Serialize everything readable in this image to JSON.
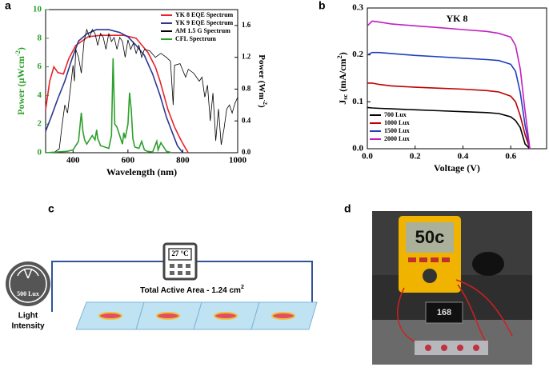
{
  "chart_data": [
    {
      "type": "line",
      "panel_label": "a",
      "x_label": "Wavelength (nm)",
      "y_label": {
        "text": "Power (µWcm",
        "sup": "-2",
        "end": ")"
      },
      "y2_label": {
        "text": "Power (Wm",
        "sup": "-2",
        "end": ")"
      },
      "y_color": "#2ca02c",
      "xlim": [
        300,
        1000
      ],
      "xticks": [
        400,
        600,
        800,
        1000
      ],
      "ylim": [
        0,
        10
      ],
      "yticks": [
        0,
        2,
        4,
        6,
        8,
        10
      ],
      "y2lim": [
        0,
        1.8
      ],
      "y2ticks": [
        {
          "value": 0,
          "label": "0.0"
        },
        0.4,
        0.8,
        1.2,
        1.6
      ],
      "legend": "upper right",
      "series": [
        {
          "name": "YK 8 EQE Spectrum",
          "color": "#e8232a",
          "x": [
            300,
            315,
            330,
            345,
            365,
            385,
            410,
            455,
            500,
            550,
            585,
            630,
            673,
            700,
            717,
            746,
            770,
            790,
            810,
            820
          ],
          "values": [
            3.0,
            5.0,
            6.0,
            5.6,
            5.5,
            6.6,
            7.5,
            8.1,
            8.2,
            8.2,
            8.2,
            8.0,
            7.0,
            6.0,
            5.0,
            3.0,
            1.8,
            1.0,
            0.3,
            0
          ]
        },
        {
          "name": "YK 9 EQE Spectrum",
          "color": "#2b3990",
          "x": [
            300,
            320,
            345,
            370,
            395,
            420,
            450,
            485,
            530,
            570,
            600,
            630,
            660,
            690,
            717,
            740,
            760,
            780,
            800
          ],
          "values": [
            1.5,
            2.5,
            3.8,
            5.0,
            6.5,
            7.8,
            8.3,
            8.6,
            8.6,
            8.4,
            8.1,
            7.5,
            6.8,
            5.5,
            4.0,
            2.5,
            1.5,
            0.5,
            0
          ]
        },
        {
          "name": "AM 1.5 G Spectrum",
          "color": "#000000",
          "axis": "y2",
          "x": [
            300,
            330,
            350,
            360,
            370,
            380,
            390,
            400,
            405,
            410,
            420,
            430,
            440,
            450,
            460,
            470,
            480,
            490,
            500,
            510,
            520,
            530,
            540,
            550,
            560,
            570,
            580,
            590,
            600,
            610,
            620,
            630,
            640,
            650,
            660,
            680,
            700,
            720,
            740,
            755,
            765,
            770,
            790,
            810,
            820,
            840,
            860,
            870,
            880,
            890,
            900,
            910,
            920,
            930,
            940,
            950,
            960,
            970,
            980,
            990,
            1000
          ],
          "values": [
            0,
            0,
            0.05,
            0.35,
            0.6,
            0.5,
            0.8,
            1.1,
            0.9,
            1.3,
            1.2,
            1.0,
            1.4,
            1.55,
            1.45,
            1.55,
            1.5,
            1.35,
            1.5,
            1.45,
            1.3,
            1.5,
            1.4,
            1.45,
            1.3,
            1.45,
            1.4,
            1.2,
            1.42,
            1.3,
            1.38,
            1.25,
            1.35,
            1.2,
            1.3,
            1.28,
            1.2,
            1.25,
            1.2,
            1.15,
            0.6,
            1.1,
            1.12,
            0.95,
            1.05,
            1.0,
            0.9,
            0.95,
            0.7,
            0.85,
            0.4,
            0.75,
            0.15,
            0.55,
            0.1,
            0.3,
            0.55,
            0.6,
            0.5,
            0.62,
            0.7
          ]
        },
        {
          "name": "CFL Spectrum",
          "color": "#2ca02c",
          "x": [
            300,
            380,
            400,
            420,
            430,
            436,
            442,
            450,
            470,
            480,
            486,
            490,
            500,
            530,
            540,
            546,
            552,
            560,
            580,
            585,
            590,
            600,
            606,
            612,
            618,
            625,
            640,
            650,
            660,
            670,
            690,
            705,
            710,
            720,
            740,
            760
          ],
          "values": [
            0,
            0.1,
            0.2,
            0.8,
            2.8,
            1.5,
            0.9,
            0.6,
            1.2,
            0.9,
            1.6,
            1.0,
            0.5,
            0.3,
            1.2,
            6.6,
            2.0,
            1.8,
            0.6,
            1.4,
            1.0,
            2.0,
            4.2,
            3.0,
            1.0,
            0.4,
            0.3,
            0.8,
            0.2,
            0.1,
            0.05,
            0.8,
            0.2,
            0.7,
            0.1,
            0
          ]
        }
      ]
    },
    {
      "type": "line",
      "panel_label": "b",
      "x_label": "Voltage (V)",
      "y_label": {
        "text": "J",
        "sub": "sc",
        "mid": " (mA/cm",
        "sup": "2",
        "end": ")"
      },
      "annotation": "YK 8",
      "xlim": [
        0,
        0.75
      ],
      "xticks": [
        {
          "value": 0,
          "label": "0.0"
        },
        0.2,
        0.4,
        0.6
      ],
      "ylim": [
        0,
        0.3
      ],
      "yticks": [
        {
          "value": 0,
          "label": "0.0"
        },
        0.1,
        0.2,
        0.3
      ],
      "legend": "lower left",
      "series": [
        {
          "name": "700 Lux",
          "color": "#000000",
          "x": [
            0,
            0.02,
            0.05,
            0.1,
            0.2,
            0.3,
            0.4,
            0.5,
            0.55,
            0.6,
            0.62,
            0.64,
            0.66,
            0.68
          ],
          "values": [
            0.088,
            0.087,
            0.086,
            0.085,
            0.083,
            0.081,
            0.079,
            0.077,
            0.075,
            0.068,
            0.06,
            0.045,
            0.01,
            0
          ]
        },
        {
          "name": "1000 Lux",
          "color": "#c00000",
          "x": [
            0,
            0.02,
            0.05,
            0.1,
            0.2,
            0.3,
            0.4,
            0.5,
            0.55,
            0.6,
            0.62,
            0.64,
            0.66,
            0.68
          ],
          "values": [
            0.14,
            0.14,
            0.137,
            0.134,
            0.131,
            0.129,
            0.127,
            0.124,
            0.121,
            0.112,
            0.1,
            0.07,
            0.03,
            0
          ]
        },
        {
          "name": "1500 Lux",
          "color": "#1f3fbf",
          "x": [
            0,
            0.02,
            0.05,
            0.1,
            0.2,
            0.3,
            0.4,
            0.5,
            0.55,
            0.6,
            0.62,
            0.64,
            0.66,
            0.68
          ],
          "values": [
            0.2,
            0.205,
            0.205,
            0.203,
            0.199,
            0.196,
            0.193,
            0.19,
            0.188,
            0.18,
            0.165,
            0.12,
            0.05,
            0
          ]
        },
        {
          "name": "2000 Lux",
          "color": "#c020c0",
          "x": [
            0,
            0.02,
            0.05,
            0.1,
            0.2,
            0.3,
            0.4,
            0.5,
            0.55,
            0.6,
            0.62,
            0.64,
            0.66,
            0.68
          ],
          "values": [
            0.262,
            0.272,
            0.27,
            0.266,
            0.262,
            0.258,
            0.254,
            0.25,
            0.246,
            0.238,
            0.22,
            0.17,
            0.08,
            0
          ]
        }
      ]
    }
  ],
  "panel_c": {
    "label": "c",
    "temperature": "27 °C",
    "area_label": [
      "Total Active Area - 1.24 cm",
      "2"
    ],
    "lux": "500 Lux",
    "light_label": [
      "Light",
      "Intensity"
    ]
  },
  "panel_d": {
    "label": "d",
    "meter_display": "50c",
    "small_display": "168"
  }
}
